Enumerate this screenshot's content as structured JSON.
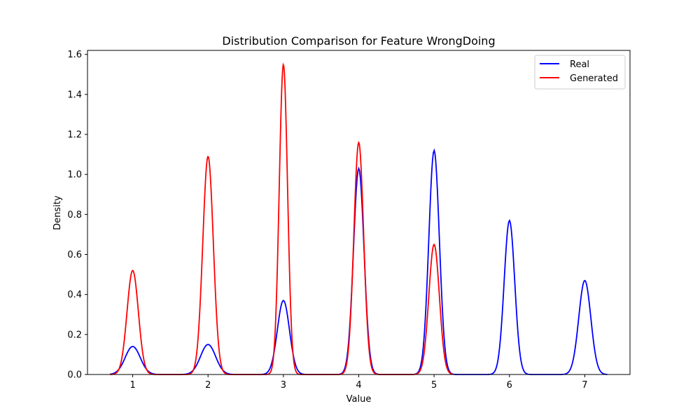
{
  "chart_data": {
    "type": "line",
    "title": "Distribution Comparison for Feature WrongDoing",
    "xlabel": "Value",
    "ylabel": "Density",
    "xlim": [
      0.7,
      7.3
    ],
    "ylim": [
      0,
      1.6
    ],
    "xticks": [
      1,
      2,
      3,
      4,
      5,
      6,
      7
    ],
    "yticks": [
      0.0,
      0.2,
      0.4,
      0.6,
      0.8,
      1.0,
      1.2,
      1.4,
      1.6
    ],
    "ytick_labels": [
      "0.0",
      "0.2",
      "0.4",
      "0.6",
      "0.8",
      "1.0",
      "1.2",
      "1.4",
      "1.6"
    ],
    "grid": false,
    "legend_position": "top-right",
    "series": [
      {
        "name": "Real",
        "color": "#0000ff",
        "x_range": [
          0.7,
          7.3
        ],
        "peaks": [
          {
            "center": 1,
            "height": 0.14,
            "width": 0.1
          },
          {
            "center": 2,
            "height": 0.15,
            "width": 0.1
          },
          {
            "center": 3,
            "height": 0.37,
            "width": 0.08
          },
          {
            "center": 4,
            "height": 1.03,
            "width": 0.07
          },
          {
            "center": 5,
            "height": 1.12,
            "width": 0.07
          },
          {
            "center": 6,
            "height": 0.77,
            "width": 0.07
          },
          {
            "center": 7,
            "height": 0.47,
            "width": 0.08
          }
        ]
      },
      {
        "name": "Generated",
        "color": "#ff0000",
        "x_range": [
          0.7,
          5.25
        ],
        "peaks": [
          {
            "center": 1,
            "height": 0.52,
            "width": 0.075
          },
          {
            "center": 2,
            "height": 1.09,
            "width": 0.07
          },
          {
            "center": 3,
            "height": 1.55,
            "width": 0.055
          },
          {
            "center": 4,
            "height": 1.16,
            "width": 0.065
          },
          {
            "center": 5,
            "height": 0.65,
            "width": 0.07
          }
        ]
      }
    ]
  }
}
